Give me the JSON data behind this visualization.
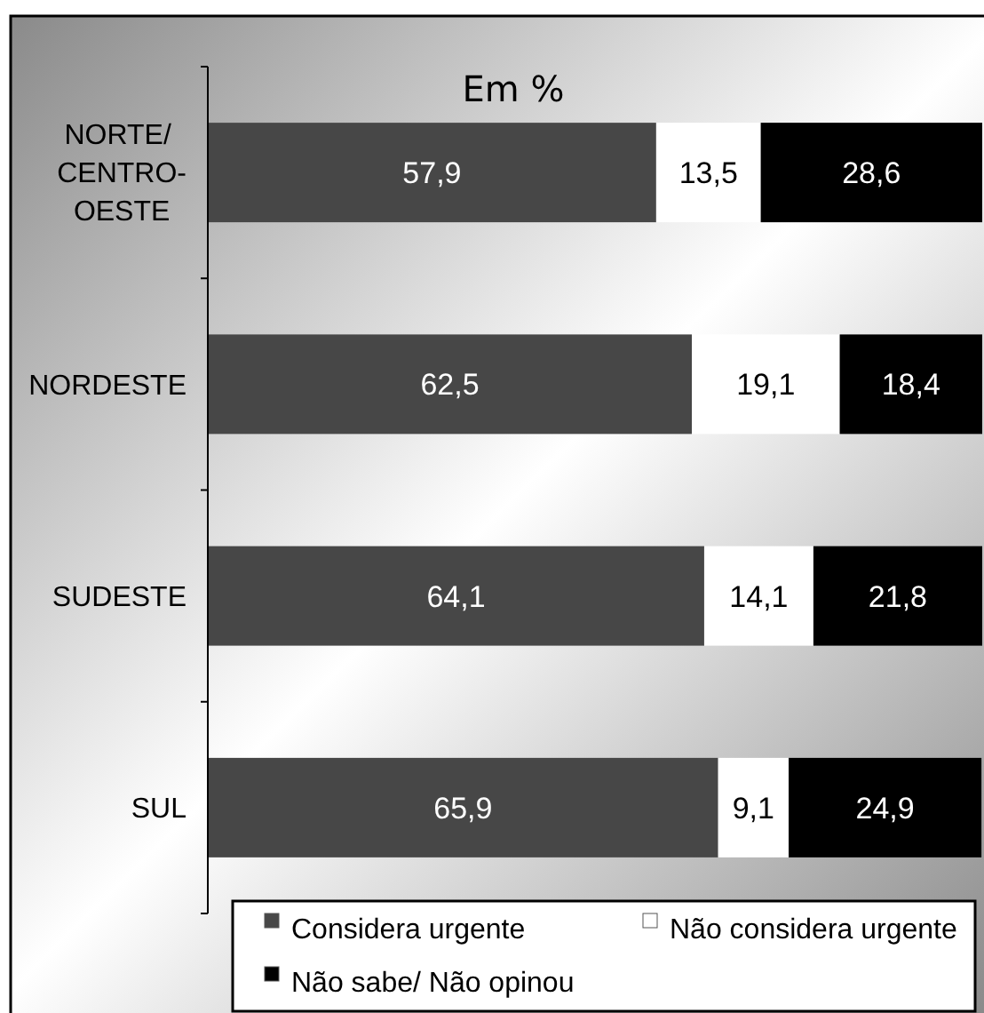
{
  "chart_data": {
    "type": "bar",
    "orientation": "horizontal",
    "stacked": true,
    "title": "Em %",
    "categories": [
      "NORTE/ CENTRO-OESTE",
      "NORDESTE",
      "SUDESTE",
      "SUL"
    ],
    "series": [
      {
        "name": "Considera urgente",
        "color": "#474747",
        "values": [
          57.9,
          62.5,
          64.1,
          65.9
        ],
        "value_labels": [
          "57,9",
          "62,5",
          "64,1",
          "65,9"
        ]
      },
      {
        "name": "Não considera urgente",
        "color": "#ffffff",
        "values": [
          13.5,
          19.1,
          14.1,
          9.1
        ],
        "value_labels": [
          "13,5",
          "19,1",
          "14,1",
          "9,1"
        ]
      },
      {
        "name": "Não sabe/ Não opinou",
        "color": "#000000",
        "values": [
          28.6,
          18.4,
          21.8,
          24.9
        ],
        "value_labels": [
          "28,6",
          "18,4",
          "21,8",
          "24,9"
        ]
      }
    ],
    "legend": "bottom",
    "tick_labels": "y"
  }
}
